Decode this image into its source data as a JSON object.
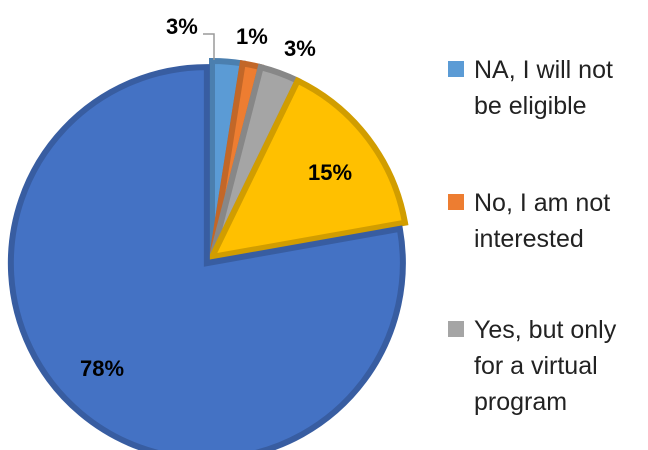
{
  "chart_data": {
    "type": "pie",
    "series": [
      {
        "name": "",
        "categories": [
          "NA, I will not be eligible",
          "No, I am not interested",
          "Yes, but only for a virtual program",
          "",
          ""
        ],
        "values": [
          2.5,
          1.5,
          3.2,
          15,
          77.8
        ],
        "labels": [
          "3%",
          "1%",
          "3%",
          "15%",
          "78%"
        ],
        "colors": [
          "#5B9BD5",
          "#ED7D31",
          "#A5A5A5",
          "#FFC000",
          "#4472C4"
        ]
      }
    ],
    "legend": {
      "position": "right",
      "entries": [
        {
          "text": "NA, I will not\nbe eligible",
          "color": "#5B9BD5"
        },
        {
          "text": "No, I am not\ninterested",
          "color": "#ED7D31"
        },
        {
          "text": "Yes, but only\nfor a virtual\nprogram",
          "color": "#A5A5A5"
        }
      ]
    },
    "exploded_slice_index": 4
  }
}
